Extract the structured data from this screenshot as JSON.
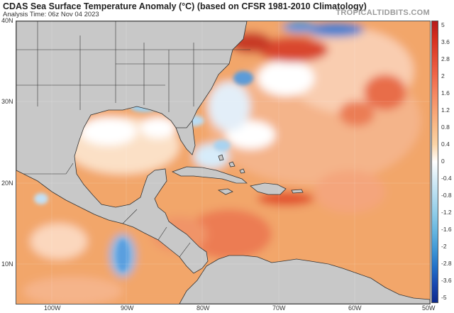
{
  "header": {
    "title": "CDAS Sea Surface Temperature Anomaly (°C) (based on CFSR 1981-2010 Climatology)",
    "subtitle": "Analysis Time: 06z Nov 04 2023",
    "watermark": "TROPICALTIDBITS.COM"
  },
  "axes": {
    "lat_labels": [
      "40N",
      "30N",
      "20N",
      "10N"
    ],
    "lon_labels": [
      "100W",
      "90W",
      "80W",
      "70W",
      "60W",
      "50W"
    ]
  },
  "colorbar": {
    "ticks": [
      "5",
      "3.6",
      "2.8",
      "2",
      "1.6",
      "1.2",
      "0.8",
      "0.4",
      "0",
      "-0.4",
      "-0.8",
      "-1.2",
      "-1.6",
      "-2",
      "-2.8",
      "-3.6",
      "-5"
    ],
    "colors": [
      "#b71c1c",
      "#d7301f",
      "#e34a33",
      "#ef6548",
      "#f4835f",
      "#f7a072",
      "#f9bb88",
      "#fbd4a6",
      "#ffffff",
      "#d6ecf7",
      "#b2dcf0",
      "#8ccbe8",
      "#64b5e0",
      "#3f97d6",
      "#2171c9",
      "#1747b0",
      "#0d2a8c"
    ]
  },
  "colors": {
    "land": "#c8c8c8",
    "ocean_base": "#f2a66a",
    "border_lines": "#333333"
  }
}
